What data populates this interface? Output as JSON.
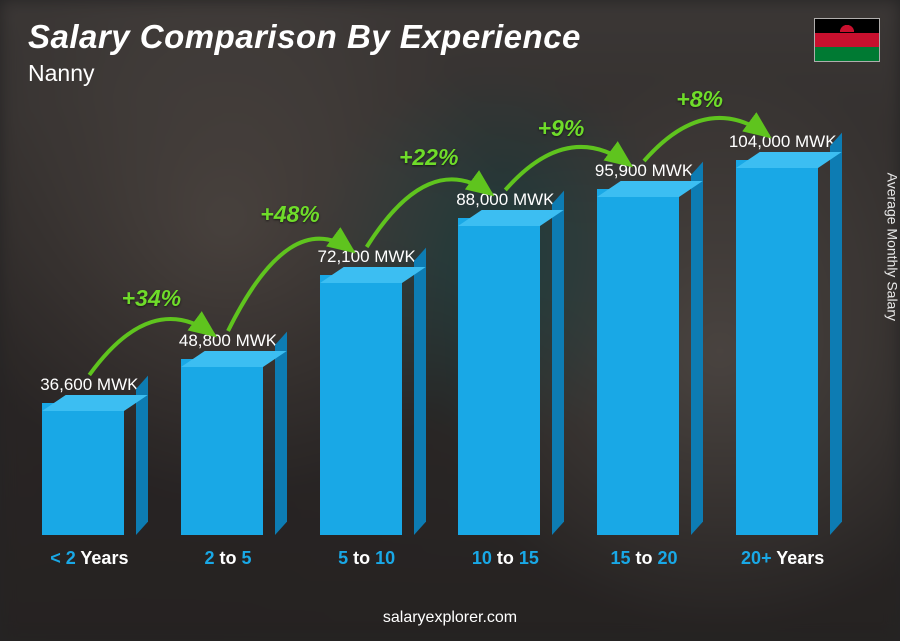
{
  "header": {
    "title": "Salary Comparison By Experience",
    "subtitle": "Nanny"
  },
  "flag": {
    "country": "Malawi",
    "stripe_colors": [
      "#000000",
      "#c8102e",
      "#007a33"
    ],
    "sun_color": "#c8102e"
  },
  "y_axis_label": "Average Monthly Salary",
  "footer": "salaryexplorer.com",
  "chart": {
    "type": "bar-3d",
    "bar_color_front": "#19a8e6",
    "bar_color_top": "#3cbef2",
    "bar_color_side": "#0d7cb3",
    "background_overlay": "rgba(20,20,25,0.55)",
    "value_font_size": 17,
    "value_color": "#ffffff",
    "xlabel_font_size": 18,
    "xlabel_color": "#ffffff",
    "xlabel_accent_color": "#19a8e6",
    "pct_color": "#6fdc2a",
    "pct_font_size": 23,
    "arc_color": "#5fc41e",
    "max_value": 104000,
    "bars": [
      {
        "value": 36600,
        "label": "36,600 MWK",
        "x_pre": "< ",
        "x_num": "2",
        "x_post": " Years"
      },
      {
        "value": 48800,
        "label": "48,800 MWK",
        "x_pre": "",
        "x_num": "2",
        "x_mid": " to ",
        "x_num2": "5",
        "x_post": ""
      },
      {
        "value": 72100,
        "label": "72,100 MWK",
        "x_pre": "",
        "x_num": "5",
        "x_mid": " to ",
        "x_num2": "10",
        "x_post": ""
      },
      {
        "value": 88000,
        "label": "88,000 MWK",
        "x_pre": "",
        "x_num": "10",
        "x_mid": " to ",
        "x_num2": "15",
        "x_post": ""
      },
      {
        "value": 95900,
        "label": "95,900 MWK",
        "x_pre": "",
        "x_num": "15",
        "x_mid": " to ",
        "x_num2": "20",
        "x_post": ""
      },
      {
        "value": 104000,
        "label": "104,000 MWK",
        "x_pre": "",
        "x_num": "20+",
        "x_post": " Years"
      }
    ],
    "pct_changes": [
      {
        "text": "+34%"
      },
      {
        "text": "+48%"
      },
      {
        "text": "+22%"
      },
      {
        "text": "+9%"
      },
      {
        "text": "+8%"
      }
    ]
  }
}
